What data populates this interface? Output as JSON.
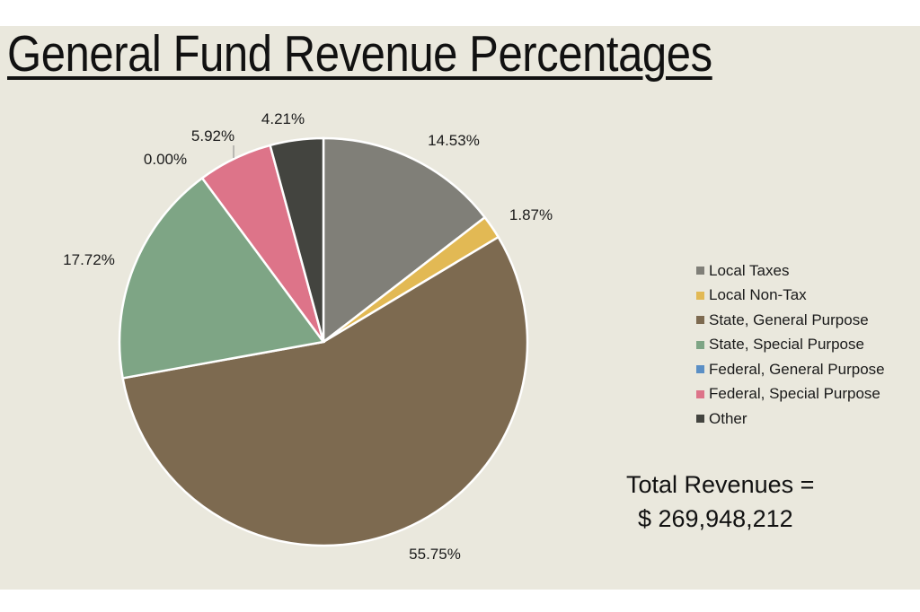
{
  "chart_data": {
    "type": "pie",
    "title": "General Fund Revenue Percentages",
    "categories": [
      "Local Taxes",
      "Local Non-Tax",
      "State, General Purpose",
      "State, Special Purpose",
      "Federal, General Purpose",
      "Federal, Special Purpose",
      "Other"
    ],
    "values": [
      14.53,
      1.87,
      55.75,
      17.72,
      0.0,
      5.92,
      4.21
    ],
    "labels": [
      "14.53%",
      "1.87%",
      "55.75%",
      "17.72%",
      "0.00%",
      "5.92%",
      "4.21%"
    ],
    "colors": [
      "#807f78",
      "#e2b954",
      "#7d6a50",
      "#7ea585",
      "#5b8fc5",
      "#dd7489",
      "#43443f"
    ],
    "legend_position": "right",
    "start": "top, clockwise"
  },
  "total": {
    "label": "Total Revenues =",
    "amount": "$ 269,948,212"
  }
}
